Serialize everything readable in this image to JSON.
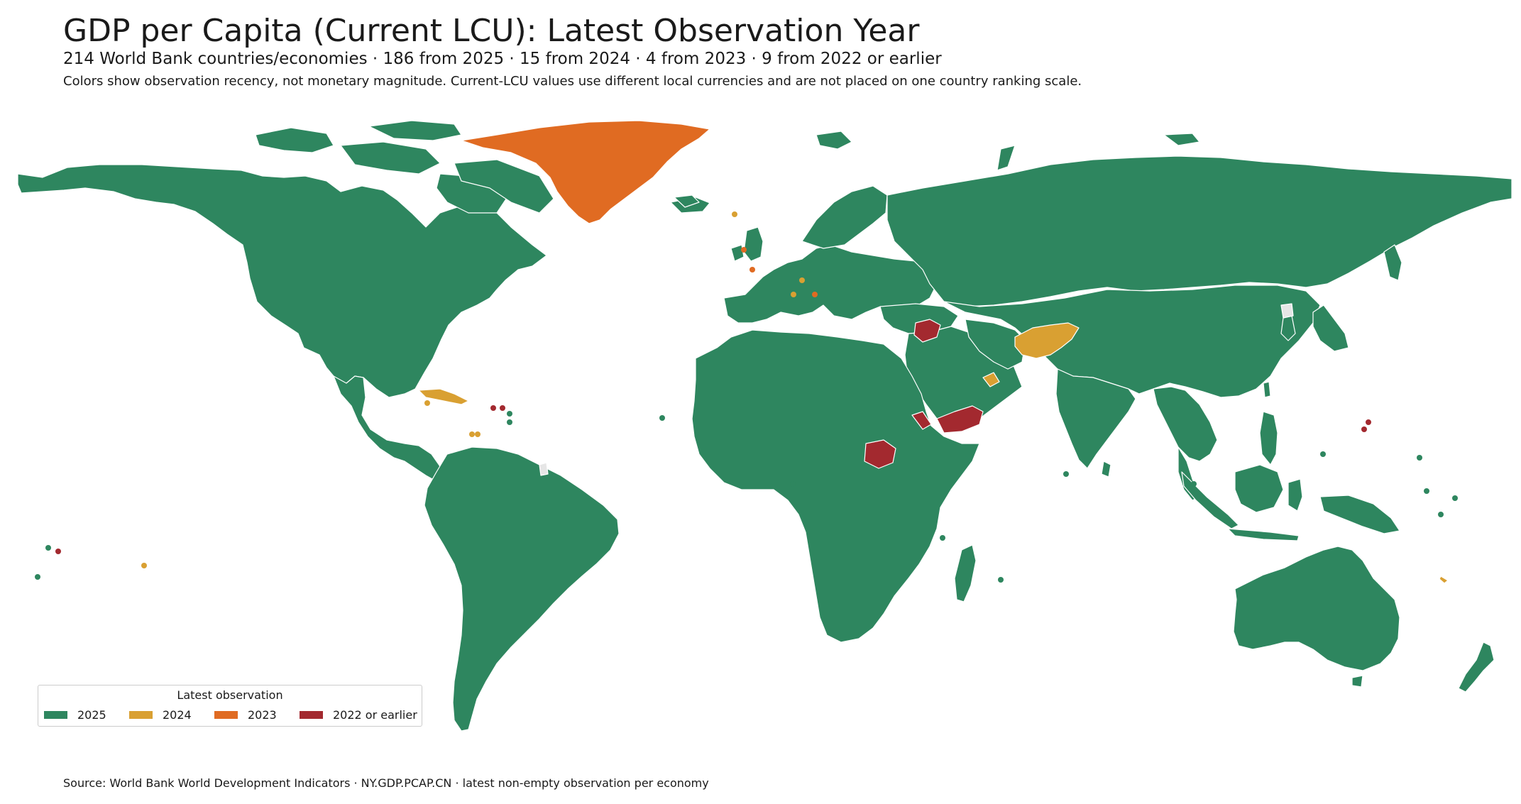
{
  "title": "GDP per Capita (Current LCU): Latest Observation Year",
  "subtitle": "214 World Bank countries/economies · 186 from 2025 · 15 from 2024 · 4 from 2023 · 9 from 2022 or earlier",
  "note": "Colors show observation recency, not monetary magnitude. Current-LCU values use different local currencies and are not placed on one country ranking scale.",
  "source": "Source: World Bank World Development Indicators · NY.GDP.PCAP.CN · latest non-empty observation per economy",
  "legend": {
    "title": "Latest observation",
    "items": [
      {
        "label": "2025",
        "color": "#2e865f"
      },
      {
        "label": "2024",
        "color": "#d9a032"
      },
      {
        "label": "2023",
        "color": "#e06b22"
      },
      {
        "label": "2022 or earlier",
        "color": "#a3292f"
      }
    ]
  },
  "colors": {
    "no_data": "#e6e6e6",
    "border": "#ffffff"
  }
}
